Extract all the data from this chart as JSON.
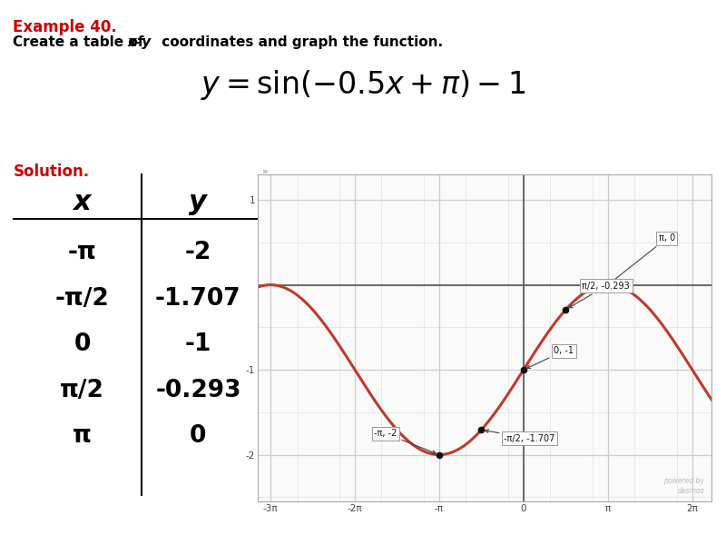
{
  "title_example": "Example 40.",
  "solution_label": "Solution.",
  "table_x": [
    "-π",
    "-π/2",
    "0",
    "π/2",
    "π"
  ],
  "table_y": [
    "-2",
    "-1.707",
    "-1",
    "-0.293",
    "0"
  ],
  "graph_line_color": "#c0392b",
  "graph_xlim": [
    -9.9,
    7.0
  ],
  "graph_ylim": [
    -2.55,
    1.3
  ],
  "graph_xticks_labels": [
    "-3π",
    "-2π",
    "-π",
    "0",
    "π",
    "2π"
  ],
  "graph_xticks_vals": [
    -9.424778,
    -6.283185,
    -3.141593,
    0,
    3.141593,
    6.283185
  ],
  "graph_yticks": [
    -2,
    -1,
    1
  ],
  "point_labels": [
    "π, 0",
    "π/2, -0.293",
    "0, -1",
    "-π/2, -1.707",
    "-π, -2"
  ],
  "point_x": [
    3.141593,
    1.570796,
    0,
    -1.570796,
    -3.141593
  ],
  "point_y": [
    0,
    -0.293,
    -1,
    -1.707,
    -2
  ],
  "example_color": "#cc0000",
  "solution_color": "#cc0000",
  "bg_color": "#ffffff",
  "font_color": "#000000",
  "grid_major_color": "#cccccc",
  "grid_minor_color": "#e5e5e5"
}
